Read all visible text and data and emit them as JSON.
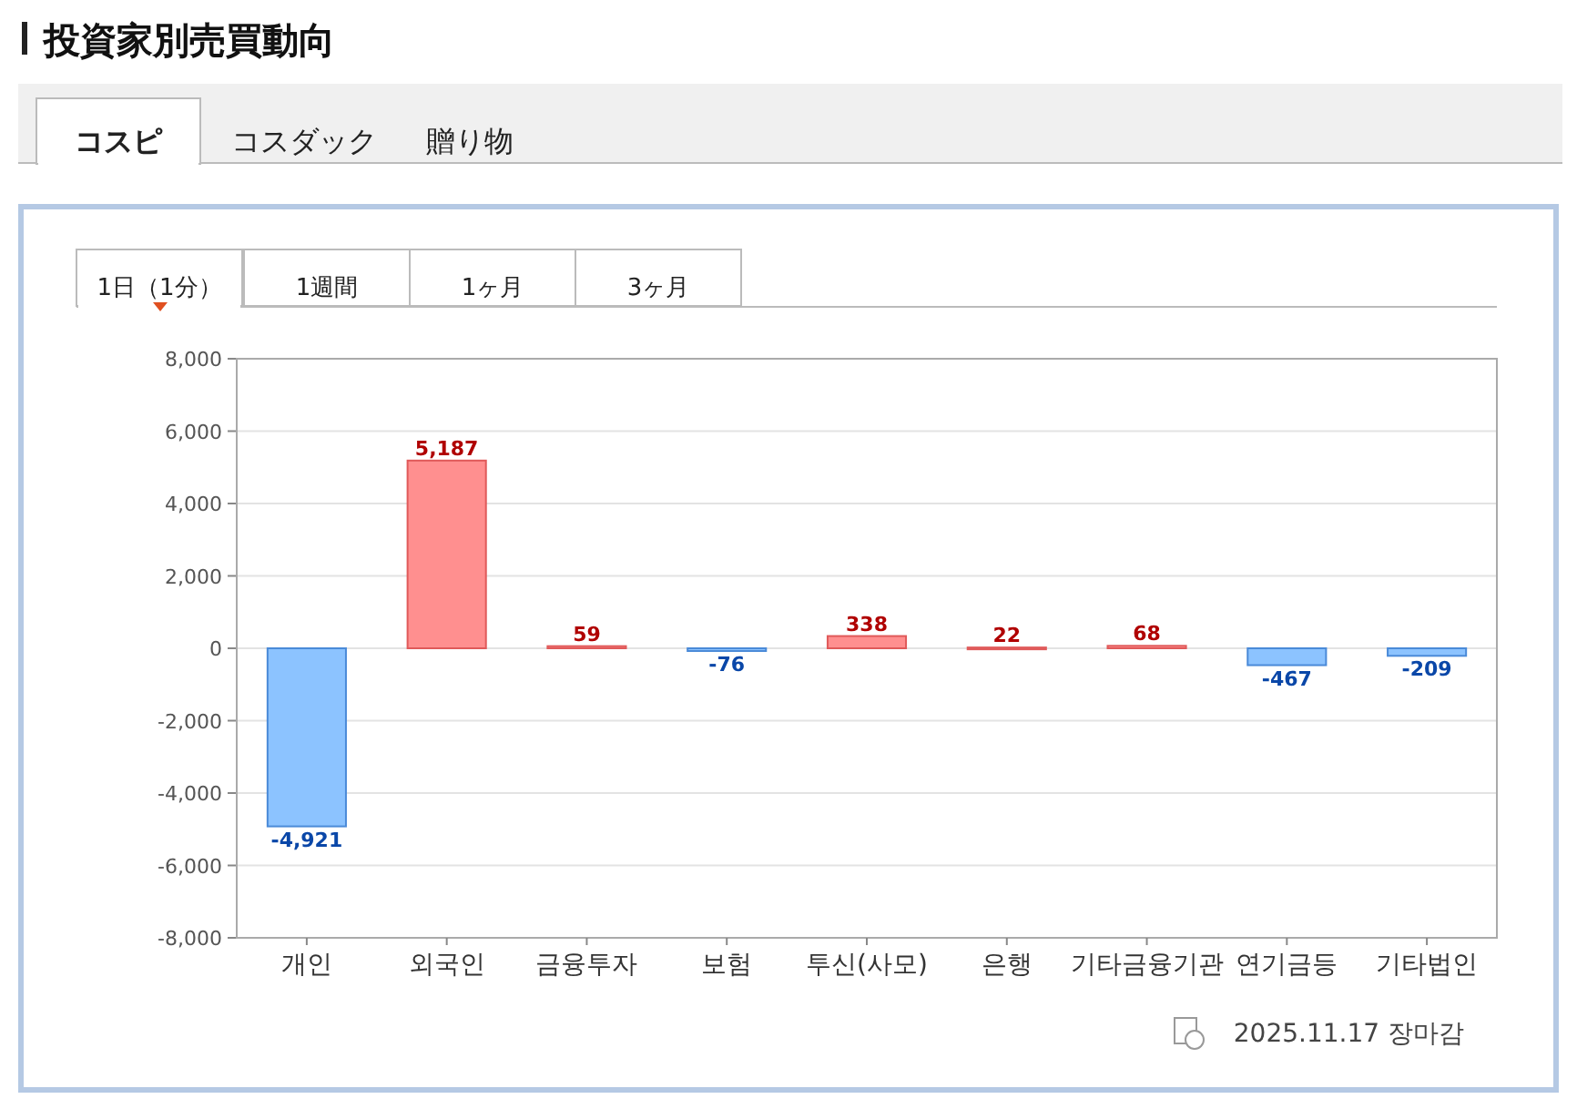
{
  "chart_data": {
    "type": "bar",
    "title": "投資家別売買動向",
    "categories": [
      "개인",
      "외국인",
      "금융투자",
      "보험",
      "투신(사모)",
      "은행",
      "기타금융기관",
      "연기금등",
      "기타법인"
    ],
    "values": [
      -4921,
      5187,
      59,
      -76,
      338,
      22,
      68,
      -467,
      -209
    ],
    "value_labels": [
      "-4,921",
      "5,187",
      "59",
      "-76",
      "338",
      "22",
      "68",
      "-467",
      "-209"
    ],
    "colors": [
      "#8cc3ff",
      "#ff8f8f",
      "#ff8f8f",
      "#8cc3ff",
      "#ff8f8f",
      "#ff8f8f",
      "#ff8f8f",
      "#8cc3ff",
      "#8cc3ff"
    ],
    "ylim": [
      -8000,
      8000
    ],
    "yticks": [
      {
        "value": -8000,
        "label": "-8,000"
      },
      {
        "value": -6000,
        "label": "-6,000"
      },
      {
        "value": -4000,
        "label": "-4,000"
      },
      {
        "value": -2000,
        "label": "-2,000"
      },
      {
        "value": 0,
        "label": "0"
      },
      {
        "value": 2000,
        "label": "2,000"
      },
      {
        "value": 4000,
        "label": "4,000"
      },
      {
        "value": 6000,
        "label": "6,000"
      },
      {
        "value": 8000,
        "label": "8,000"
      }
    ],
    "grid": "y",
    "annotations": [
      "コスピ",
      "コスダック",
      "贈り物",
      "1日（1分）",
      "1週間",
      "1ヶ月",
      "3ヶ月",
      "2025.11.17 장마감"
    ]
  }
}
